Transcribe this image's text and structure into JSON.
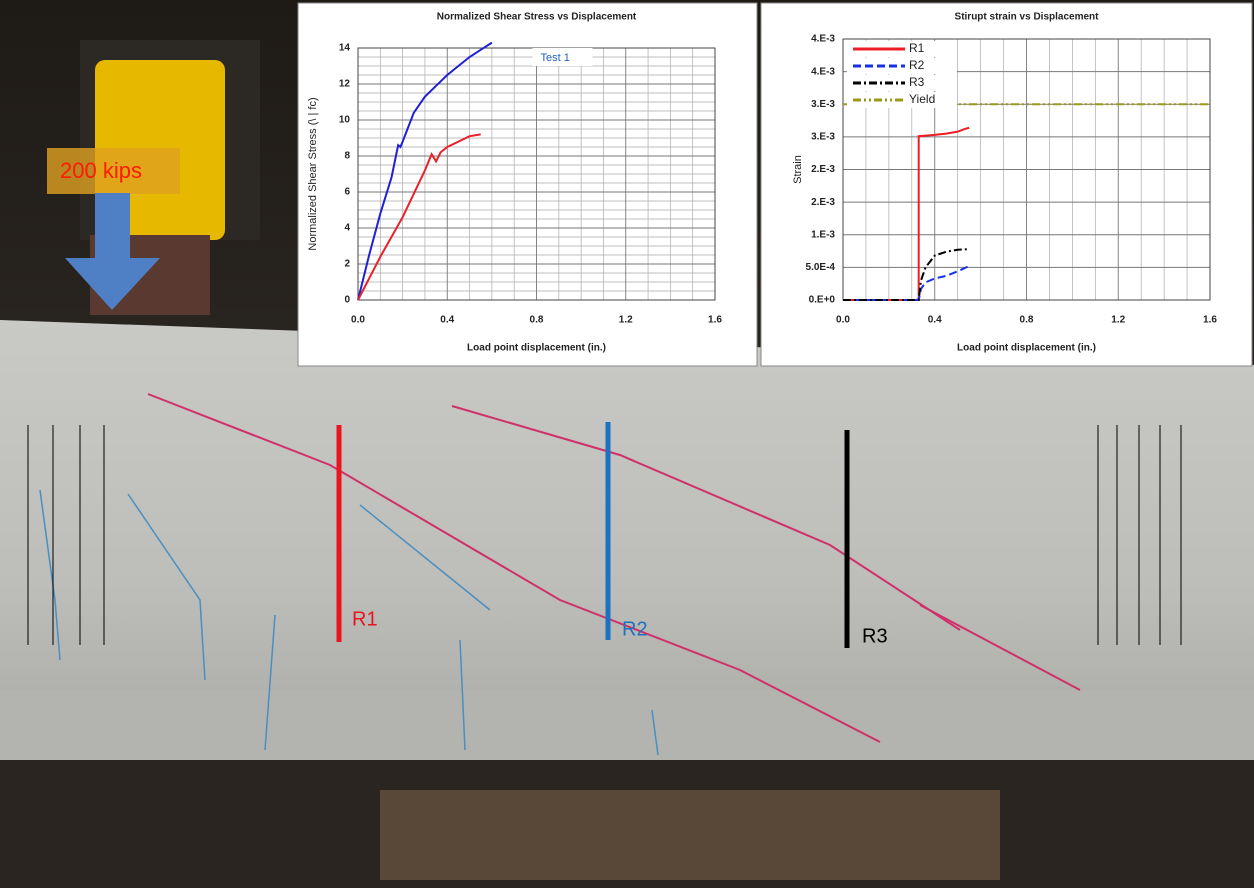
{
  "photo_labels": {
    "load": "200 kips",
    "gauges": [
      "R1",
      "R2",
      "R3"
    ]
  },
  "chart_data": [
    {
      "type": "line",
      "title": "Normalized  Shear Stress vs Displacement",
      "xlabel": "Load point displacement  (in.)",
      "ylabel": "Normalized Shear Stress (\\ | fc)",
      "xlim": [
        0,
        1.6
      ],
      "ylim": [
        0,
        14
      ],
      "xticks": [
        {
          "value": 0,
          "label": "0.0"
        },
        0.4,
        0.8,
        1.2,
        1.6
      ],
      "yticks": [
        0,
        2,
        4,
        6,
        8,
        10,
        12,
        14
      ],
      "grid": true,
      "legend": "upper-center",
      "series": [
        {
          "name": "Test 1",
          "color": "#1f1fd6",
          "x": [
            0,
            0.05,
            0.1,
            0.15,
            0.18,
            0.19,
            0.2,
            0.25,
            0.3,
            0.35,
            0.4,
            0.45,
            0.5,
            0.55,
            0.6
          ],
          "values": [
            0,
            2.5,
            4.8,
            6.8,
            8.6,
            8.5,
            8.8,
            10.4,
            11.3,
            11.9,
            12.5,
            13,
            13.5,
            13.9,
            14.3
          ]
        },
        {
          "color": "#e8202a",
          "x": [
            0,
            0.1,
            0.2,
            0.3,
            0.33,
            0.35,
            0.37,
            0.4,
            0.45,
            0.5,
            0.55
          ],
          "values": [
            0,
            2.4,
            4.6,
            7.2,
            8.1,
            7.7,
            8.2,
            8.5,
            8.8,
            9.1,
            9.2
          ]
        }
      ]
    },
    {
      "type": "line",
      "title": "Stirupt  strain  vs Displacement",
      "xlabel": "Load point displacement  (in.)",
      "ylabel": "Strain",
      "xlim": [
        0,
        1.6
      ],
      "ylim": [
        0,
        0.004
      ],
      "xticks": [
        {
          "value": 0,
          "label": "0.0"
        },
        0.4,
        0.8,
        1.2,
        1.6
      ],
      "yticks": [
        {
          "value": 0,
          "label": "0.E+0"
        },
        {
          "value": 0.0005,
          "label": "5.0E-4"
        },
        {
          "value": 0.001,
          "label": "1.E-3"
        },
        {
          "value": 0.0015,
          "label": "2.E-3"
        },
        {
          "value": 0.002,
          "label": "2.E-3"
        },
        {
          "value": 0.0025,
          "label": "3.E-3"
        },
        {
          "value": 0.003,
          "label": "3.E-3"
        },
        {
          "value": 0.0035,
          "label": "4.E-3"
        },
        {
          "value": 0.004,
          "label": "4.E-3"
        }
      ],
      "grid": true,
      "legend": "upper-left",
      "series": [
        {
          "name": "R1",
          "color": "#ee1c24",
          "style": "solid",
          "x": [
            0,
            0.32,
            0.33,
            0.33,
            0.4,
            0.45,
            0.5,
            0.53,
            0.55
          ],
          "values": [
            0,
            0,
            2e-05,
            0.00251,
            0.00253,
            0.00255,
            0.00258,
            0.00262,
            0.00264
          ]
        },
        {
          "name": "R2",
          "color": "#1530e8",
          "style": "dashed",
          "x": [
            0,
            0.33,
            0.34,
            0.36,
            0.4,
            0.45,
            0.5,
            0.55
          ],
          "values": [
            0,
            0,
            0.00017,
            0.00027,
            0.00033,
            0.00037,
            0.00044,
            0.00052
          ]
        },
        {
          "name": "R3",
          "color": "#000000",
          "style": "dashdot",
          "x": [
            0,
            0.33,
            0.34,
            0.36,
            0.4,
            0.45,
            0.5,
            0.55
          ],
          "values": [
            0,
            0,
            0.0003,
            0.0005,
            0.00068,
            0.00074,
            0.00077,
            0.00078
          ]
        },
        {
          "name": "Yield",
          "color": "#9a9a1a",
          "style": "dashdotdot",
          "x": [
            0,
            1.6
          ],
          "values": [
            0.003,
            0.003
          ]
        }
      ]
    }
  ]
}
